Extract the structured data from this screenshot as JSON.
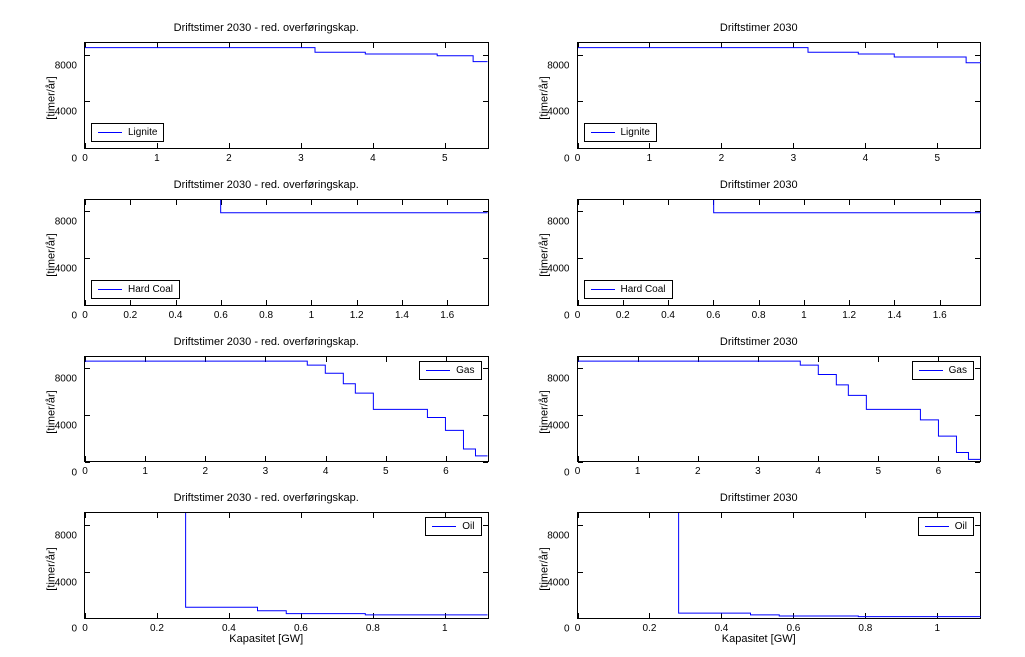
{
  "global": {
    "background_color": "#ffffff",
    "line_color": "#0000ff",
    "axis_color": "#000000",
    "font_family": "Arial",
    "title_fontsize": 11,
    "tick_fontsize": 10,
    "label_fontsize": 11,
    "line_width": 1
  },
  "columns": [
    {
      "title": "Driftstimer 2030 - red. overføringskap."
    },
    {
      "title": "Driftstimer 2030"
    }
  ],
  "ylabel": "[timer/år]",
  "xlabel": "Kapasitet [GW]",
  "rows": [
    {
      "legend": "Lignite",
      "legend_pos": "bottom-left",
      "xlim": [
        0,
        5.6
      ],
      "xticks": [
        0,
        1,
        2,
        3,
        4,
        5
      ],
      "ylim": [
        0,
        9000
      ],
      "yticks": [
        0,
        4000,
        8000
      ],
      "left_series": [
        [
          0,
          8600
        ],
        [
          3.2,
          8600
        ],
        [
          3.2,
          8200
        ],
        [
          3.9,
          8200
        ],
        [
          3.9,
          8050
        ],
        [
          4.9,
          8050
        ],
        [
          4.9,
          7900
        ],
        [
          5.4,
          7900
        ],
        [
          5.4,
          7400
        ],
        [
          5.6,
          7400
        ]
      ],
      "right_series": [
        [
          0,
          8600
        ],
        [
          3.2,
          8600
        ],
        [
          3.2,
          8200
        ],
        [
          3.9,
          8200
        ],
        [
          3.9,
          8050
        ],
        [
          4.4,
          8050
        ],
        [
          4.4,
          7800
        ],
        [
          5.4,
          7800
        ],
        [
          5.4,
          7300
        ],
        [
          5.6,
          7300
        ]
      ]
    },
    {
      "legend": "Hard Coal",
      "legend_pos": "bottom-left",
      "xlim": [
        0,
        1.78
      ],
      "xticks": [
        0,
        0.2,
        0.4,
        0.6,
        0.8,
        1,
        1.2,
        1.4,
        1.6
      ],
      "ylim": [
        0,
        9000
      ],
      "yticks": [
        0,
        4000,
        8000
      ],
      "left_series": [
        [
          0.6,
          9000
        ],
        [
          0.6,
          7900
        ],
        [
          1.78,
          7900
        ]
      ],
      "right_series": [
        [
          0.6,
          9000
        ],
        [
          0.6,
          7900
        ],
        [
          1.78,
          7900
        ]
      ]
    },
    {
      "legend": "Gas",
      "legend_pos": "top-right",
      "xlim": [
        0,
        6.7
      ],
      "xticks": [
        0,
        1,
        2,
        3,
        4,
        5,
        6
      ],
      "ylim": [
        0,
        9000
      ],
      "yticks": [
        0,
        4000,
        8000
      ],
      "left_series": [
        [
          0,
          8650
        ],
        [
          3.7,
          8650
        ],
        [
          3.7,
          8300
        ],
        [
          4.0,
          8300
        ],
        [
          4.0,
          7600
        ],
        [
          4.3,
          7600
        ],
        [
          4.3,
          6700
        ],
        [
          4.5,
          6700
        ],
        [
          4.5,
          5900
        ],
        [
          4.8,
          5900
        ],
        [
          4.8,
          4500
        ],
        [
          5.7,
          4500
        ],
        [
          5.7,
          3800
        ],
        [
          6.0,
          3800
        ],
        [
          6.0,
          2700
        ],
        [
          6.3,
          2700
        ],
        [
          6.3,
          1100
        ],
        [
          6.5,
          1100
        ],
        [
          6.5,
          500
        ],
        [
          6.7,
          500
        ]
      ],
      "right_series": [
        [
          0,
          8650
        ],
        [
          3.7,
          8650
        ],
        [
          3.7,
          8300
        ],
        [
          4.0,
          8300
        ],
        [
          4.0,
          7500
        ],
        [
          4.3,
          7500
        ],
        [
          4.3,
          6600
        ],
        [
          4.5,
          6600
        ],
        [
          4.5,
          5700
        ],
        [
          4.8,
          5700
        ],
        [
          4.8,
          4500
        ],
        [
          5.7,
          4500
        ],
        [
          5.7,
          3600
        ],
        [
          6.0,
          3600
        ],
        [
          6.0,
          2200
        ],
        [
          6.3,
          2200
        ],
        [
          6.3,
          800
        ],
        [
          6.5,
          800
        ],
        [
          6.5,
          200
        ],
        [
          6.7,
          200
        ]
      ]
    },
    {
      "legend": "Oil",
      "legend_pos": "top-right",
      "xlim": [
        0,
        1.12
      ],
      "xticks": [
        0,
        0.2,
        0.4,
        0.6,
        0.8,
        1
      ],
      "ylim": [
        0,
        9000
      ],
      "yticks": [
        0,
        4000,
        8000
      ],
      "left_series": [
        [
          0.28,
          9000
        ],
        [
          0.28,
          900
        ],
        [
          0.48,
          900
        ],
        [
          0.48,
          600
        ],
        [
          0.56,
          600
        ],
        [
          0.56,
          350
        ],
        [
          0.78,
          350
        ],
        [
          0.78,
          250
        ],
        [
          1.12,
          250
        ]
      ],
      "right_series": [
        [
          0.28,
          9000
        ],
        [
          0.28,
          400
        ],
        [
          0.48,
          400
        ],
        [
          0.48,
          250
        ],
        [
          0.56,
          250
        ],
        [
          0.56,
          150
        ],
        [
          0.78,
          150
        ],
        [
          0.78,
          100
        ],
        [
          1.12,
          100
        ]
      ],
      "show_xlabel": true
    }
  ]
}
